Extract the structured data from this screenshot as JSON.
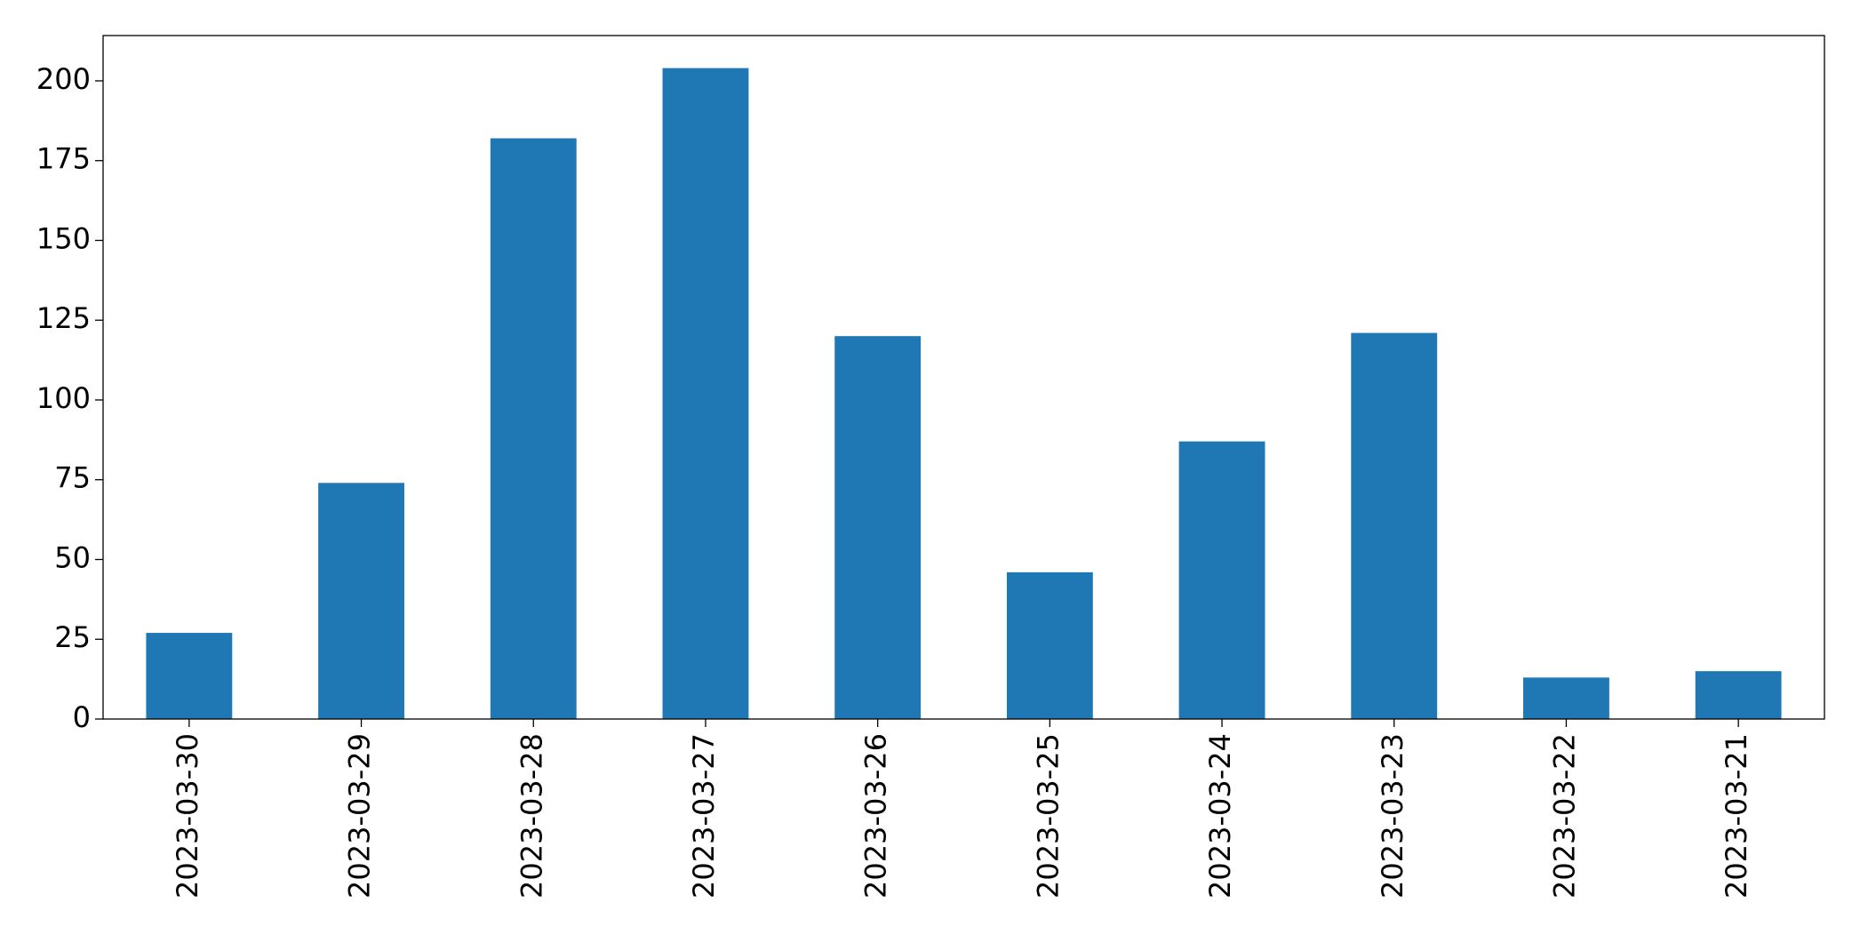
{
  "chart_data": {
    "type": "bar",
    "categories": [
      "2023-03-30",
      "2023-03-29",
      "2023-03-28",
      "2023-03-27",
      "2023-03-26",
      "2023-03-25",
      "2023-03-24",
      "2023-03-23",
      "2023-03-22",
      "2023-03-21"
    ],
    "values": [
      27,
      74,
      182,
      204,
      120,
      46,
      87,
      121,
      13,
      15
    ],
    "color": "#1f77b4",
    "ylim": [
      0,
      214.2
    ],
    "yticks": [
      0,
      25,
      50,
      75,
      100,
      125,
      150,
      175,
      200
    ],
    "grid": false
  }
}
